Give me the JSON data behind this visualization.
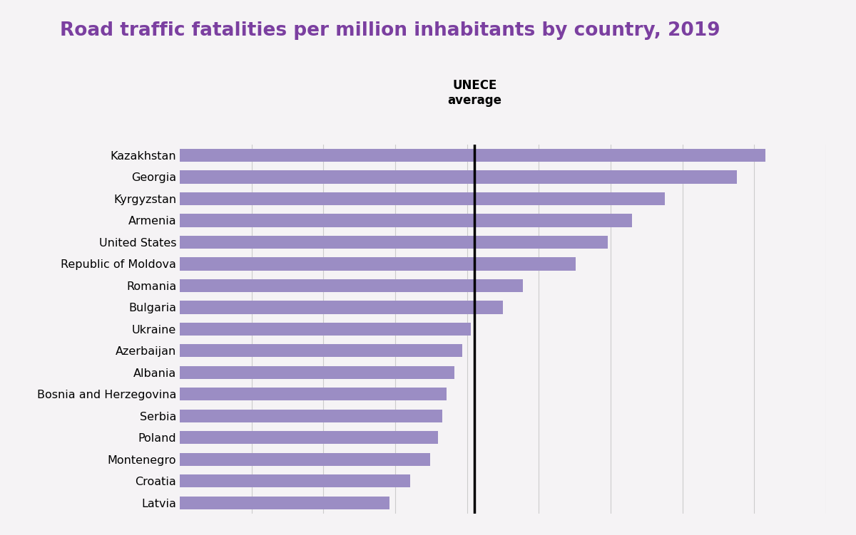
{
  "title": "Road traffic fatalities per million inhabitants by country, 2019",
  "title_color": "#7B3FA0",
  "title_fontsize": 19,
  "background_color": "#F5F3F5",
  "bar_color": "#9B8DC4",
  "unece_line_color": "#000000",
  "unece_value": 73,
  "countries": [
    "Kazakhstan",
    "Georgia",
    "Kyrgyzstan",
    "Armenia",
    "United States",
    "Republic of Moldova",
    "Romania",
    "Bulgaria",
    "Ukraine",
    "Azerbaijan",
    "Albania",
    "Bosnia and Herzegovina",
    "Serbia",
    "Poland",
    "Montenegro",
    "Croatia",
    "Latvia"
  ],
  "values": [
    145,
    138,
    120,
    112,
    106,
    98,
    85,
    80,
    72,
    70,
    68,
    66,
    65,
    64,
    62,
    57,
    52
  ],
  "xlim": [
    0,
    160
  ],
  "grid_color": "#CCCCCC",
  "label_fontsize": 11.5,
  "bar_height": 0.6,
  "unece_label_fontsize": 12
}
